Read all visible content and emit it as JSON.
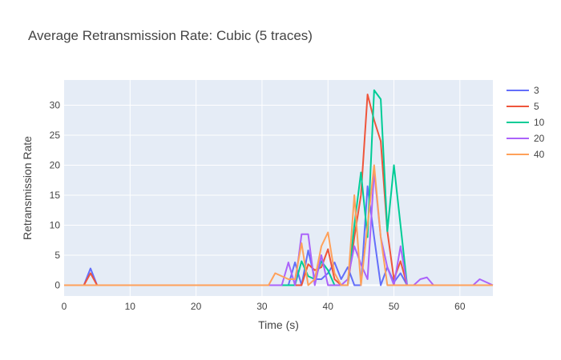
{
  "chart_data": {
    "type": "line",
    "title": "Average Retransmission Rate: Cubic (5 traces)",
    "xlabel": "Time (s)",
    "ylabel": "Retransmission Rate",
    "xlim": [
      0,
      65
    ],
    "ylim": [
      -1.8,
      34.2
    ],
    "x_ticks": [
      0,
      10,
      20,
      30,
      40,
      50,
      60
    ],
    "y_ticks": [
      0,
      5,
      10,
      15,
      20,
      25,
      30
    ],
    "grid": true,
    "legend_position": "top-right",
    "colors": {
      "plot_background": "#e5ecf6",
      "grid": "#ffffff"
    },
    "series": [
      {
        "name": "3",
        "color": "#636efa",
        "points": [
          [
            0,
            0
          ],
          [
            3,
            0
          ],
          [
            4,
            2.8
          ],
          [
            5,
            0
          ],
          [
            33,
            0
          ],
          [
            34,
            0
          ],
          [
            35,
            3.8
          ],
          [
            36,
            0
          ],
          [
            37,
            5.8
          ],
          [
            38,
            1
          ],
          [
            39,
            1
          ],
          [
            40,
            2
          ],
          [
            41,
            3.8
          ],
          [
            42,
            1
          ],
          [
            43,
            3
          ],
          [
            44,
            0
          ],
          [
            45,
            0
          ],
          [
            46,
            16.5
          ],
          [
            47,
            8
          ],
          [
            48,
            0
          ],
          [
            49,
            3
          ],
          [
            50,
            0.5
          ],
          [
            51,
            2
          ],
          [
            52,
            0
          ],
          [
            53,
            0
          ],
          [
            60,
            0
          ],
          [
            65,
            0
          ]
        ]
      },
      {
        "name": "5",
        "color": "#ef553b",
        "points": [
          [
            0,
            0
          ],
          [
            3,
            0
          ],
          [
            4,
            2
          ],
          [
            5,
            0
          ],
          [
            35,
            0
          ],
          [
            36,
            0
          ],
          [
            37,
            3.5
          ],
          [
            38,
            2.5
          ],
          [
            39,
            3
          ],
          [
            40,
            6
          ],
          [
            41,
            1
          ],
          [
            42,
            0
          ],
          [
            43,
            0
          ],
          [
            44,
            8
          ],
          [
            45,
            15
          ],
          [
            46,
            31.8
          ],
          [
            47,
            27.5
          ],
          [
            48,
            24
          ],
          [
            49,
            9
          ],
          [
            50,
            1
          ],
          [
            51,
            4
          ],
          [
            52,
            0
          ],
          [
            60,
            0
          ],
          [
            65,
            0
          ]
        ]
      },
      {
        "name": "10",
        "color": "#00cc96",
        "points": [
          [
            0,
            0
          ],
          [
            35,
            0
          ],
          [
            36,
            4
          ],
          [
            37,
            1.5
          ],
          [
            38,
            1
          ],
          [
            39,
            4
          ],
          [
            40,
            2.5
          ],
          [
            41,
            0
          ],
          [
            42,
            0
          ],
          [
            43,
            0
          ],
          [
            44,
            10
          ],
          [
            45,
            18.8
          ],
          [
            46,
            8
          ],
          [
            47,
            32.5
          ],
          [
            48,
            31
          ],
          [
            49,
            9
          ],
          [
            50,
            20
          ],
          [
            51,
            10
          ],
          [
            52,
            0
          ],
          [
            60,
            0
          ],
          [
            65,
            0
          ]
        ]
      },
      {
        "name": "20",
        "color": "#ab63fa",
        "points": [
          [
            0,
            0
          ],
          [
            33,
            0
          ],
          [
            34,
            3.8
          ],
          [
            35,
            0
          ],
          [
            36,
            8.5
          ],
          [
            37,
            8.5
          ],
          [
            38,
            0
          ],
          [
            39,
            5
          ],
          [
            40,
            0
          ],
          [
            41,
            0
          ],
          [
            42,
            0
          ],
          [
            43,
            1
          ],
          [
            44,
            6.5
          ],
          [
            45,
            3.5
          ],
          [
            46,
            1
          ],
          [
            47,
            19
          ],
          [
            48,
            8
          ],
          [
            49,
            3
          ],
          [
            50,
            0
          ],
          [
            51,
            6.5
          ],
          [
            52,
            0
          ],
          [
            53,
            0
          ],
          [
            54,
            1
          ],
          [
            55,
            1.3
          ],
          [
            56,
            0
          ],
          [
            62,
            0
          ],
          [
            63,
            1
          ],
          [
            65,
            0
          ]
        ]
      },
      {
        "name": "40",
        "color": "#ffa15a",
        "points": [
          [
            0,
            0
          ],
          [
            31,
            0
          ],
          [
            32,
            2
          ],
          [
            33,
            1.5
          ],
          [
            34,
            1
          ],
          [
            35,
            1
          ],
          [
            36,
            7
          ],
          [
            37,
            0
          ],
          [
            38,
            1
          ],
          [
            39,
            6.5
          ],
          [
            40,
            8.8
          ],
          [
            41,
            2
          ],
          [
            42,
            0
          ],
          [
            43,
            0
          ],
          [
            44,
            15
          ],
          [
            45,
            0
          ],
          [
            46,
            10
          ],
          [
            47,
            20
          ],
          [
            48,
            8
          ],
          [
            49,
            0
          ],
          [
            50,
            0
          ],
          [
            60,
            0
          ],
          [
            65,
            0
          ]
        ]
      }
    ]
  }
}
